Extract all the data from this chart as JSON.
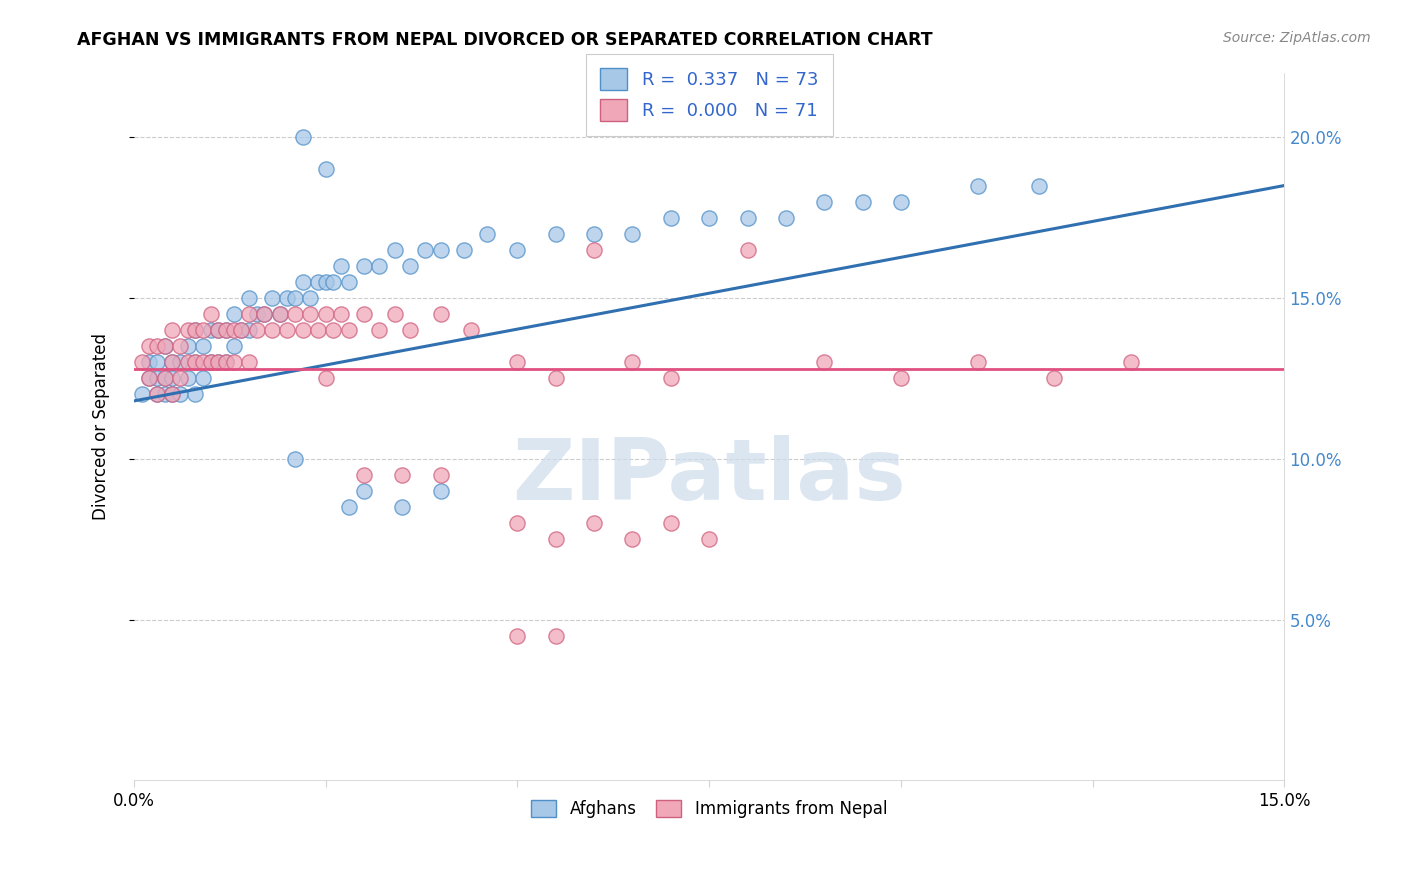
{
  "title": "AFGHAN VS IMMIGRANTS FROM NEPAL DIVORCED OR SEPARATED CORRELATION CHART",
  "source": "Source: ZipAtlas.com",
  "ylabel": "Divorced or Separated",
  "legend_label1": "Afghans",
  "legend_label2": "Immigrants from Nepal",
  "R1": "0.337",
  "N1": "73",
  "R2": "0.000",
  "N2": "71",
  "blue_fill": "#a8c8e8",
  "blue_edge": "#5090c8",
  "pink_fill": "#f0a8b8",
  "pink_edge": "#d06080",
  "blue_line": "#3070b0",
  "pink_line": "#e05080",
  "watermark": "ZIPatlas",
  "watermark_color": "#ccdcec",
  "xlim": [
    0.0,
    0.15
  ],
  "ylim": [
    0.0,
    0.22
  ],
  "blue_x": [
    0.001,
    0.002,
    0.002,
    0.003,
    0.003,
    0.003,
    0.004,
    0.004,
    0.004,
    0.005,
    0.005,
    0.005,
    0.006,
    0.006,
    0.007,
    0.007,
    0.008,
    0.008,
    0.008,
    0.009,
    0.009,
    0.01,
    0.01,
    0.011,
    0.011,
    0.012,
    0.012,
    0.013,
    0.013,
    0.014,
    0.015,
    0.015,
    0.016,
    0.017,
    0.018,
    0.019,
    0.02,
    0.021,
    0.022,
    0.023,
    0.024,
    0.025,
    0.026,
    0.027,
    0.028,
    0.03,
    0.032,
    0.034,
    0.036,
    0.038,
    0.04,
    0.043,
    0.046,
    0.05,
    0.055,
    0.06,
    0.065,
    0.07,
    0.075,
    0.08,
    0.085,
    0.09,
    0.095,
    0.1,
    0.11,
    0.118,
    0.022,
    0.025,
    0.03,
    0.035,
    0.04,
    0.021,
    0.028
  ],
  "blue_y": [
    0.12,
    0.13,
    0.125,
    0.13,
    0.125,
    0.12,
    0.135,
    0.125,
    0.12,
    0.13,
    0.125,
    0.12,
    0.13,
    0.12,
    0.135,
    0.125,
    0.14,
    0.13,
    0.12,
    0.135,
    0.125,
    0.14,
    0.13,
    0.14,
    0.13,
    0.14,
    0.13,
    0.145,
    0.135,
    0.14,
    0.15,
    0.14,
    0.145,
    0.145,
    0.15,
    0.145,
    0.15,
    0.15,
    0.155,
    0.15,
    0.155,
    0.155,
    0.155,
    0.16,
    0.155,
    0.16,
    0.16,
    0.165,
    0.16,
    0.165,
    0.165,
    0.165,
    0.17,
    0.165,
    0.17,
    0.17,
    0.17,
    0.175,
    0.175,
    0.175,
    0.175,
    0.18,
    0.18,
    0.18,
    0.185,
    0.185,
    0.2,
    0.19,
    0.09,
    0.085,
    0.09,
    0.1,
    0.085
  ],
  "pink_x": [
    0.001,
    0.002,
    0.002,
    0.003,
    0.003,
    0.004,
    0.004,
    0.005,
    0.005,
    0.005,
    0.006,
    0.006,
    0.007,
    0.007,
    0.008,
    0.008,
    0.009,
    0.009,
    0.01,
    0.01,
    0.011,
    0.011,
    0.012,
    0.012,
    0.013,
    0.013,
    0.014,
    0.015,
    0.015,
    0.016,
    0.017,
    0.018,
    0.019,
    0.02,
    0.021,
    0.022,
    0.023,
    0.024,
    0.025,
    0.026,
    0.027,
    0.028,
    0.03,
    0.032,
    0.034,
    0.036,
    0.04,
    0.044,
    0.05,
    0.055,
    0.06,
    0.065,
    0.07,
    0.08,
    0.09,
    0.1,
    0.11,
    0.12,
    0.13,
    0.05,
    0.055,
    0.06,
    0.065,
    0.07,
    0.075,
    0.05,
    0.055,
    0.025,
    0.03,
    0.035,
    0.04
  ],
  "pink_y": [
    0.13,
    0.135,
    0.125,
    0.135,
    0.12,
    0.135,
    0.125,
    0.14,
    0.13,
    0.12,
    0.135,
    0.125,
    0.14,
    0.13,
    0.14,
    0.13,
    0.14,
    0.13,
    0.145,
    0.13,
    0.14,
    0.13,
    0.14,
    0.13,
    0.14,
    0.13,
    0.14,
    0.145,
    0.13,
    0.14,
    0.145,
    0.14,
    0.145,
    0.14,
    0.145,
    0.14,
    0.145,
    0.14,
    0.145,
    0.14,
    0.145,
    0.14,
    0.145,
    0.14,
    0.145,
    0.14,
    0.145,
    0.14,
    0.13,
    0.125,
    0.165,
    0.13,
    0.125,
    0.165,
    0.13,
    0.125,
    0.13,
    0.125,
    0.13,
    0.08,
    0.075,
    0.08,
    0.075,
    0.08,
    0.075,
    0.045,
    0.045,
    0.125,
    0.095,
    0.095,
    0.095
  ],
  "blue_line_x0": 0.0,
  "blue_line_x1": 0.15,
  "blue_line_y0": 0.118,
  "blue_line_y1": 0.185,
  "pink_line_y": 0.128
}
